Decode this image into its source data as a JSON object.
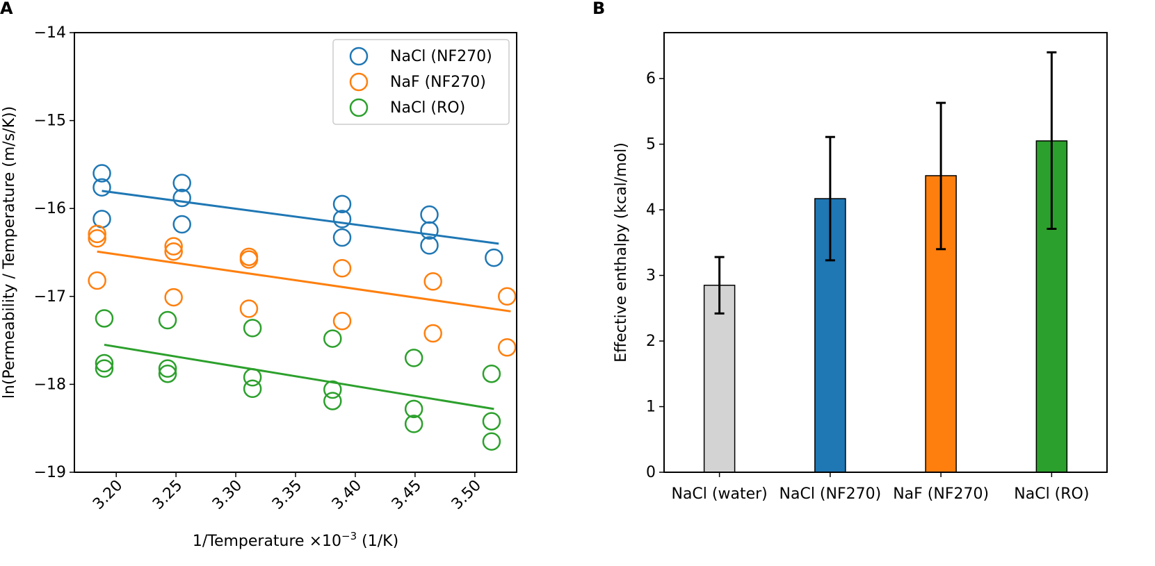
{
  "chart_data": [
    {
      "panel": "A",
      "type": "scatter",
      "xlabel": "1/Temperature ×10",
      "xlabel_exp": "−3",
      "xlabel_unit": "(1/K)",
      "ylabel": "ln(Permeability / Temperature (m/s/K))",
      "xlim": [
        3.165,
        3.535
      ],
      "ylim": [
        -19,
        -14
      ],
      "xticks": [
        3.2,
        3.25,
        3.3,
        3.35,
        3.4,
        3.45,
        3.5
      ],
      "xtick_labels": [
        "3.20",
        "3.25",
        "3.30",
        "3.35",
        "3.40",
        "3.45",
        "3.50"
      ],
      "yticks": [
        -19,
        -18,
        -17,
        -16,
        -15,
        -14
      ],
      "ytick_labels": [
        "−19",
        "−18",
        "−17",
        "−16",
        "−15",
        "−14"
      ],
      "legend_position": "top-right",
      "series": [
        {
          "name": "NaCl (NF270)",
          "color": "#1f77b4",
          "points": [
            [
              3.188,
              -15.6
            ],
            [
              3.188,
              -15.76
            ],
            [
              3.188,
              -16.12
            ],
            [
              3.255,
              -15.71
            ],
            [
              3.255,
              -15.88
            ],
            [
              3.255,
              -16.18
            ],
            [
              3.389,
              -15.95
            ],
            [
              3.389,
              -16.12
            ],
            [
              3.389,
              -16.33
            ],
            [
              3.462,
              -16.07
            ],
            [
              3.462,
              -16.25
            ],
            [
              3.462,
              -16.42
            ],
            [
              3.516,
              -16.56
            ]
          ],
          "fit": [
            [
              3.188,
              -15.8
            ],
            [
              3.52,
              -16.4
            ]
          ]
        },
        {
          "name": "NaF (NF270)",
          "color": "#ff7f0e",
          "points": [
            [
              3.184,
              -16.29
            ],
            [
              3.184,
              -16.34
            ],
            [
              3.184,
              -16.82
            ],
            [
              3.248,
              -16.43
            ],
            [
              3.248,
              -16.49
            ],
            [
              3.248,
              -17.01
            ],
            [
              3.311,
              -16.55
            ],
            [
              3.311,
              -16.58
            ],
            [
              3.311,
              -17.14
            ],
            [
              3.389,
              -16.68
            ],
            [
              3.389,
              -17.28
            ],
            [
              3.465,
              -16.83
            ],
            [
              3.465,
              -17.42
            ],
            [
              3.527,
              -17.0
            ],
            [
              3.527,
              -17.58
            ]
          ],
          "fit": [
            [
              3.184,
              -16.49
            ],
            [
              3.53,
              -17.17
            ]
          ]
        },
        {
          "name": "NaCl (RO)",
          "color": "#2ca02c",
          "points": [
            [
              3.19,
              -17.25
            ],
            [
              3.19,
              -17.76
            ],
            [
              3.19,
              -17.82
            ],
            [
              3.243,
              -17.27
            ],
            [
              3.243,
              -17.82
            ],
            [
              3.243,
              -17.88
            ],
            [
              3.314,
              -17.36
            ],
            [
              3.314,
              -17.92
            ],
            [
              3.314,
              -18.05
            ],
            [
              3.381,
              -17.48
            ],
            [
              3.381,
              -18.06
            ],
            [
              3.381,
              -18.19
            ],
            [
              3.449,
              -17.7
            ],
            [
              3.449,
              -18.28
            ],
            [
              3.449,
              -18.45
            ],
            [
              3.514,
              -17.88
            ],
            [
              3.514,
              -18.42
            ],
            [
              3.514,
              -18.65
            ]
          ],
          "fit": [
            [
              3.19,
              -17.55
            ],
            [
              3.516,
              -18.28
            ]
          ]
        }
      ]
    },
    {
      "panel": "B",
      "type": "bar",
      "categories": [
        "NaCl (water)",
        "NaCl (NF270)",
        "NaF (NF270)",
        "NaCl (RO)"
      ],
      "values": [
        2.85,
        4.17,
        4.52,
        5.05
      ],
      "error_low": [
        2.42,
        3.23,
        3.4,
        3.71
      ],
      "error_high": [
        3.28,
        5.11,
        5.63,
        6.4
      ],
      "colors": [
        "#d3d3d3",
        "#1f77b4",
        "#ff7f0e",
        "#2ca02c"
      ],
      "ylabel": "Effective enthalpy (kcal/mol)",
      "xlabel": "",
      "ylim": [
        0,
        6.7
      ],
      "yticks": [
        0,
        1,
        2,
        3,
        4,
        5,
        6
      ],
      "ytick_labels": [
        "0",
        "1",
        "2",
        "3",
        "4",
        "5",
        "6"
      ]
    }
  ]
}
